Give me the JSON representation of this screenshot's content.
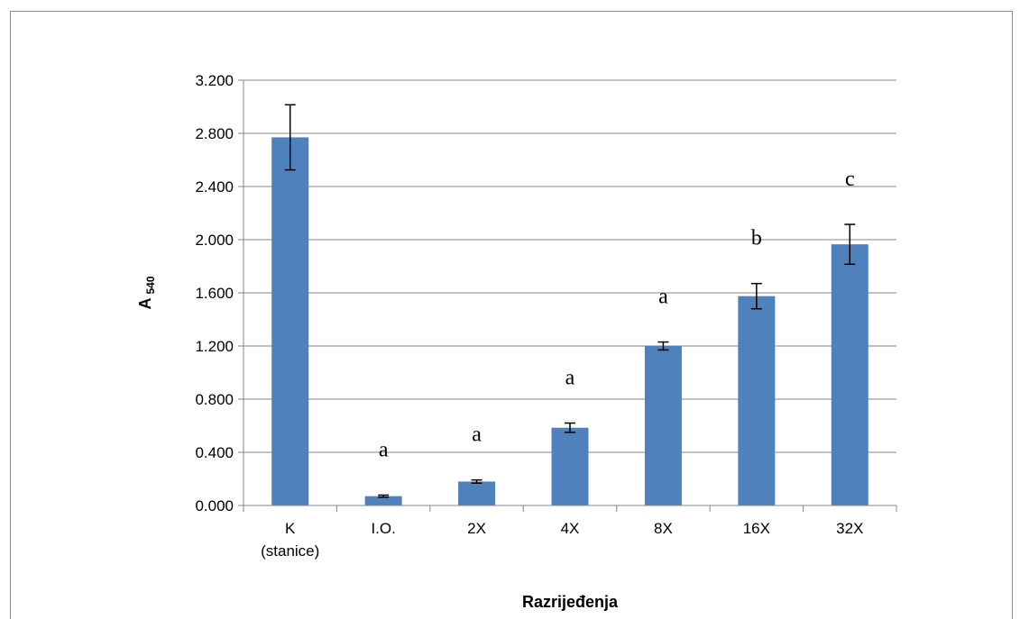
{
  "chart_data": {
    "type": "bar",
    "categories": [
      [
        "K",
        "(stanice)"
      ],
      [
        "I.O."
      ],
      [
        "2X"
      ],
      [
        "4X"
      ],
      [
        "8X"
      ],
      [
        "16X"
      ],
      [
        "32X"
      ]
    ],
    "values": [
      2.77,
      0.07,
      0.18,
      0.585,
      1.2,
      1.575,
      1.965
    ],
    "errors": [
      0.245,
      0.008,
      0.012,
      0.035,
      0.03,
      0.095,
      0.15
    ],
    "annotations": [
      "",
      "a",
      "a",
      "a",
      "a",
      "b",
      "c"
    ],
    "ylabel_main": "A",
    "ylabel_sub": "540",
    "xlabel": "Razrijeđenja",
    "ylim": [
      0,
      3.2
    ],
    "yticks": [
      "0.000",
      "0.400",
      "0.800",
      "1.200",
      "1.600",
      "2.000",
      "2.400",
      "2.800",
      "3.200"
    ],
    "ytick_values": [
      0,
      0.4,
      0.8,
      1.2,
      1.6,
      2.0,
      2.4,
      2.8,
      3.2
    ],
    "grid": true,
    "bar_color": "#4f81bd",
    "grid_color": "#868686"
  }
}
